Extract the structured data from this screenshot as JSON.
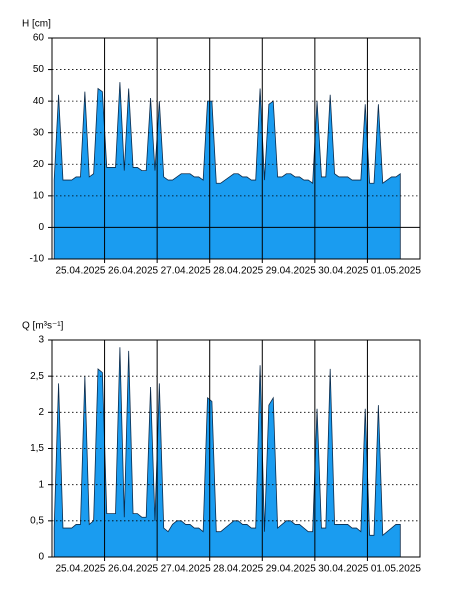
{
  "chart_data": [
    {
      "type": "area",
      "y_label": "H [cm]",
      "color": "#1a9cf0",
      "line_color": "#0b2a4a",
      "grid": true,
      "ylim": [
        -10,
        60
      ],
      "yticks": [
        -10,
        0,
        10,
        20,
        30,
        40,
        50,
        60
      ],
      "categories": [
        null,
        null,
        null,
        null,
        null,
        null,
        "25.04.2025",
        null,
        null,
        null,
        null,
        null,
        null,
        null,
        null,
        null,
        null,
        null,
        "26.04.2025",
        null,
        null,
        null,
        null,
        null,
        null,
        null,
        null,
        null,
        null,
        null,
        "27.04.2025",
        null,
        null,
        null,
        null,
        null,
        null,
        null,
        null,
        null,
        null,
        null,
        "28.04.2025",
        null,
        null,
        null,
        null,
        null,
        null,
        null,
        null,
        null,
        null,
        null,
        "29.04.2025",
        null,
        null,
        null,
        null,
        null,
        null,
        null,
        null,
        null,
        null,
        null,
        "30.04.2025",
        null,
        null,
        null,
        null,
        null,
        null,
        null,
        null,
        null,
        null,
        null,
        "01.05.2025",
        null,
        null,
        null,
        null,
        null
      ],
      "values": [
        15,
        42,
        15,
        15,
        15,
        16,
        16,
        43,
        16,
        17,
        44,
        43,
        19,
        19,
        19,
        46,
        18,
        44,
        19,
        19,
        18,
        18,
        41,
        18,
        40,
        16,
        15,
        15,
        16,
        17,
        17,
        17,
        16,
        16,
        15,
        40,
        40,
        14,
        14,
        15,
        16,
        17,
        17,
        16,
        16,
        15,
        15,
        44,
        15,
        39,
        40,
        16,
        16,
        17,
        17,
        16,
        16,
        15,
        15,
        14,
        40,
        16,
        16,
        42,
        17,
        16,
        16,
        16,
        15,
        15,
        15,
        39,
        14,
        14,
        39,
        14,
        15,
        16,
        16,
        17,
        null,
        null,
        null,
        null
      ]
    },
    {
      "type": "area",
      "y_label": "Q [m³s⁻¹]",
      "color": "#1a9cf0",
      "line_color": "#0b2a4a",
      "grid": true,
      "ylim": [
        0,
        3
      ],
      "yticks": [
        0,
        {
          "value": 0.5,
          "label": "0,5"
        },
        1,
        {
          "value": 1.5,
          "label": "1,5"
        },
        2,
        {
          "value": 2.5,
          "label": "2,5"
        },
        3
      ],
      "categories": [
        null,
        null,
        null,
        null,
        null,
        null,
        "25.04.2025",
        null,
        null,
        null,
        null,
        null,
        null,
        null,
        null,
        null,
        null,
        null,
        "26.04.2025",
        null,
        null,
        null,
        null,
        null,
        null,
        null,
        null,
        null,
        null,
        null,
        "27.04.2025",
        null,
        null,
        null,
        null,
        null,
        null,
        null,
        null,
        null,
        null,
        null,
        "28.04.2025",
        null,
        null,
        null,
        null,
        null,
        null,
        null,
        null,
        null,
        null,
        null,
        "29.04.2025",
        null,
        null,
        null,
        null,
        null,
        null,
        null,
        null,
        null,
        null,
        null,
        "30.04.2025",
        null,
        null,
        null,
        null,
        null,
        null,
        null,
        null,
        null,
        null,
        null,
        "01.05.2025",
        null,
        null,
        null,
        null,
        null
      ],
      "values": [
        0.4,
        2.4,
        0.4,
        0.4,
        0.4,
        0.45,
        0.45,
        2.5,
        0.45,
        0.5,
        2.6,
        2.55,
        0.6,
        0.6,
        0.6,
        2.9,
        0.55,
        2.85,
        0.6,
        0.6,
        0.55,
        0.55,
        2.35,
        0.5,
        2.4,
        0.4,
        0.35,
        0.45,
        0.5,
        0.5,
        0.45,
        0.45,
        0.4,
        0.4,
        0.35,
        2.2,
        2.15,
        0.35,
        0.35,
        0.4,
        0.45,
        0.5,
        0.5,
        0.45,
        0.45,
        0.4,
        0.4,
        2.65,
        0.35,
        2.1,
        2.2,
        0.4,
        0.45,
        0.5,
        0.5,
        0.45,
        0.45,
        0.4,
        0.35,
        0.35,
        2.05,
        0.4,
        0.4,
        2.6,
        0.45,
        0.45,
        0.45,
        0.45,
        0.4,
        0.4,
        0.35,
        2.05,
        0.3,
        0.3,
        2.1,
        0.3,
        0.35,
        0.4,
        0.45,
        0.45,
        null,
        null,
        null,
        null
      ]
    }
  ]
}
